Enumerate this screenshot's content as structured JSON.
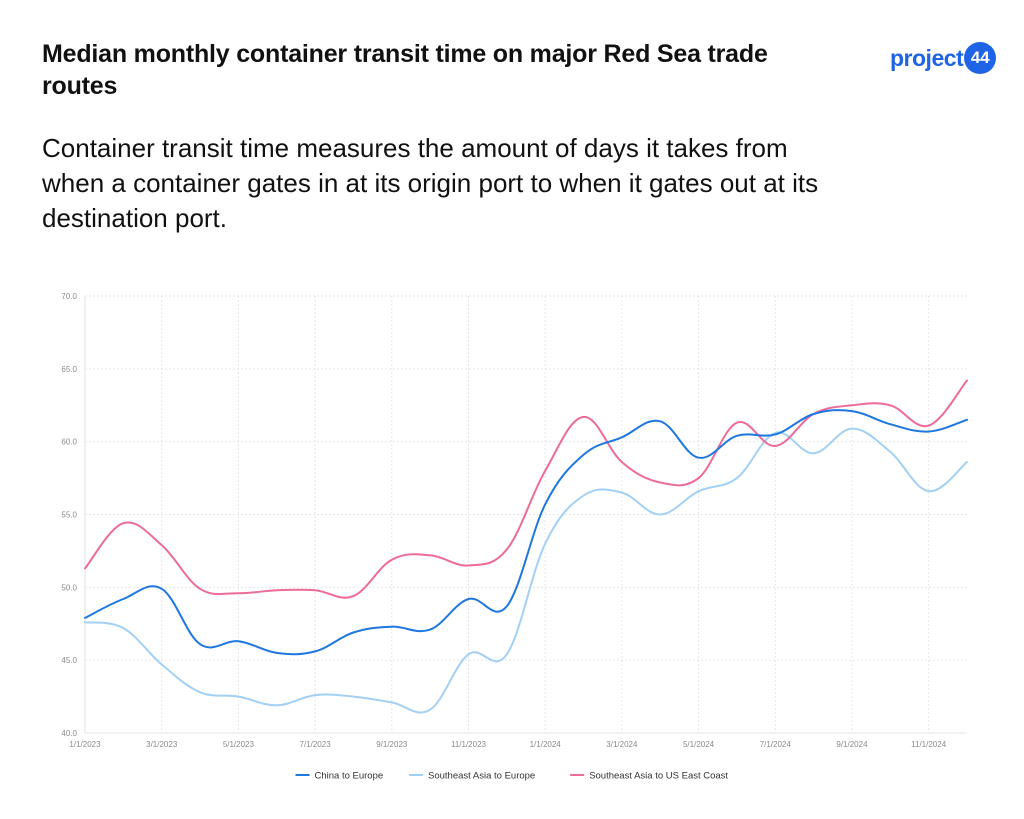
{
  "header": {
    "title": "Median monthly container transit time on major Red Sea trade routes",
    "subtitle": "Container transit time measures the amount of days it takes from when a container gates in at its origin port to when it gates out at its destination port.",
    "logo_text": "project",
    "logo_badge": "44"
  },
  "colors": {
    "China to Europe": "#1f77e0",
    "Southeast Asia to Europe": "#a3d0f5",
    "Southeast Asia to US East Coast": "#ec6b98",
    "brand": "#1f64e6"
  },
  "chart_data": {
    "type": "line",
    "title": "",
    "xlabel": "",
    "ylabel": "",
    "ylim": [
      40,
      70
    ],
    "y_ticks": [
      "40.0",
      "45.0",
      "50.0",
      "55.0",
      "60.0",
      "65.0",
      "70.0"
    ],
    "x_tick_labels": [
      "1/1/2023",
      "3/1/2023",
      "5/1/2023",
      "7/1/2023",
      "9/1/2023",
      "11/1/2023",
      "1/1/2024",
      "3/1/2024",
      "5/1/2024",
      "7/1/2024",
      "9/1/2024",
      "11/1/2024"
    ],
    "categories": [
      "1/1/2023",
      "2/1/2023",
      "3/1/2023",
      "4/1/2023",
      "5/1/2023",
      "6/1/2023",
      "7/1/2023",
      "8/1/2023",
      "9/1/2023",
      "10/1/2023",
      "11/1/2023",
      "12/1/2023",
      "1/1/2024",
      "2/1/2024",
      "3/1/2024",
      "4/1/2024",
      "5/1/2024",
      "6/1/2024",
      "7/1/2024",
      "8/1/2024",
      "9/1/2024",
      "10/1/2024",
      "11/1/2024",
      "12/1/2024"
    ],
    "grid": true,
    "legend_position": "bottom",
    "series": [
      {
        "name": "China to Europe",
        "values": [
          47.9,
          49.2,
          49.9,
          46.1,
          46.3,
          45.5,
          45.6,
          46.9,
          47.3,
          47.1,
          49.2,
          48.7,
          55.7,
          59.1,
          60.3,
          61.4,
          58.9,
          60.4,
          60.5,
          61.9,
          62.1,
          61.2,
          60.7,
          61.5
        ]
      },
      {
        "name": "Southeast Asia to Europe",
        "values": [
          47.6,
          47.2,
          44.7,
          42.8,
          42.5,
          41.9,
          42.6,
          42.5,
          42.1,
          41.6,
          45.4,
          45.4,
          53.0,
          56.3,
          56.5,
          55.0,
          56.6,
          57.5,
          60.6,
          59.2,
          60.9,
          59.3,
          56.6,
          58.6
        ]
      },
      {
        "name": "Southeast Asia to US East Coast",
        "values": [
          51.3,
          54.4,
          52.9,
          49.9,
          49.6,
          49.8,
          49.8,
          49.4,
          51.9,
          52.2,
          51.5,
          52.6,
          58.0,
          61.7,
          58.6,
          57.2,
          57.5,
          61.3,
          59.7,
          61.9,
          62.5,
          62.5,
          61.1,
          64.2
        ]
      }
    ]
  }
}
